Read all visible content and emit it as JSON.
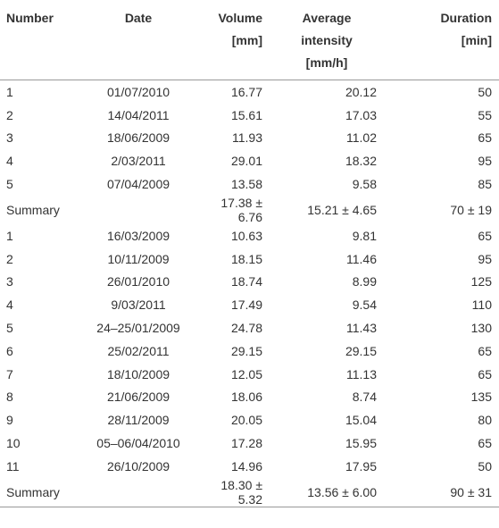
{
  "table": {
    "header": [
      [
        "Number"
      ],
      [
        "Date"
      ],
      [
        "Volume",
        "[mm]"
      ],
      [
        "Average",
        "intensity",
        "[mm/h]"
      ],
      [
        "Duration",
        "[min]"
      ]
    ],
    "rows": [
      [
        "1",
        "01/07/2010",
        "16.77",
        "20.12",
        "50"
      ],
      [
        "2",
        "14/04/2011",
        "15.61",
        "17.03",
        "55"
      ],
      [
        "3",
        "18/06/2009",
        "11.93",
        "11.02",
        "65"
      ],
      [
        "4",
        "2/03/2011",
        "29.01",
        "18.32",
        "95"
      ],
      [
        "5",
        "07/04/2009",
        "13.58",
        "9.58",
        "85"
      ],
      [
        "Summary",
        null,
        "17.38 ± 6.76",
        "15.21 ± 4.65",
        "70 ± 19"
      ],
      [
        "1",
        "16/03/2009",
        "10.63",
        "9.81",
        "65"
      ],
      [
        "2",
        "10/11/2009",
        "18.15",
        "11.46",
        "95"
      ],
      [
        "3",
        "26/01/2010",
        "18.74",
        "8.99",
        "125"
      ],
      [
        "4",
        "9/03/2011",
        "17.49",
        "9.54",
        "110"
      ],
      [
        "5",
        "24–25/01/2009",
        "24.78",
        "11.43",
        "130"
      ],
      [
        "6",
        "25/02/2011",
        "29.15",
        "29.15",
        "65"
      ],
      [
        "7",
        "18/10/2009",
        "12.05",
        "11.13",
        "65"
      ],
      [
        "8",
        "21/06/2009",
        "18.06",
        "8.74",
        "135"
      ],
      [
        "9",
        "28/11/2009",
        "20.05",
        "15.04",
        "80"
      ],
      [
        "10",
        "05–06/04/2010",
        "17.28",
        "15.95",
        "65"
      ],
      [
        "11",
        "26/10/2009",
        "14.96",
        "17.95",
        "50"
      ],
      [
        "Summary",
        null,
        "18.30 ± 5.32",
        "13.56 ± 6.00",
        "90 ± 31"
      ]
    ]
  }
}
